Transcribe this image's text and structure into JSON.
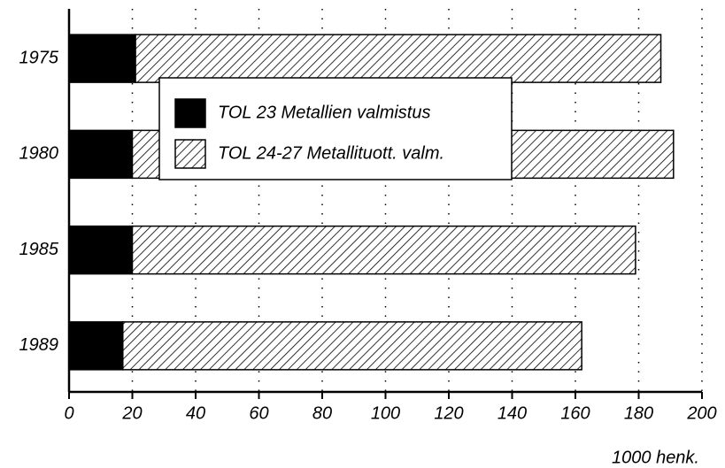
{
  "chart_data": {
    "type": "stacked_barh",
    "categories": [
      "1975",
      "1980",
      "1985",
      "1989"
    ],
    "series": [
      {
        "name": "TOL 23 Metallien valmistus",
        "color": "#000000",
        "fill": "solid",
        "values": [
          21,
          20,
          20,
          17
        ]
      },
      {
        "name": "TOL 24-27 Metallituott. valm.",
        "color": "#000000",
        "fill": "hatch",
        "values": [
          166,
          171,
          159,
          145
        ]
      }
    ],
    "x_label": "1000 henk.",
    "xlim": [
      0,
      200
    ],
    "xticks": [
      0,
      20,
      40,
      60,
      80,
      100,
      120,
      140,
      160,
      180,
      200
    ],
    "grid": true,
    "legend": "upper center"
  }
}
